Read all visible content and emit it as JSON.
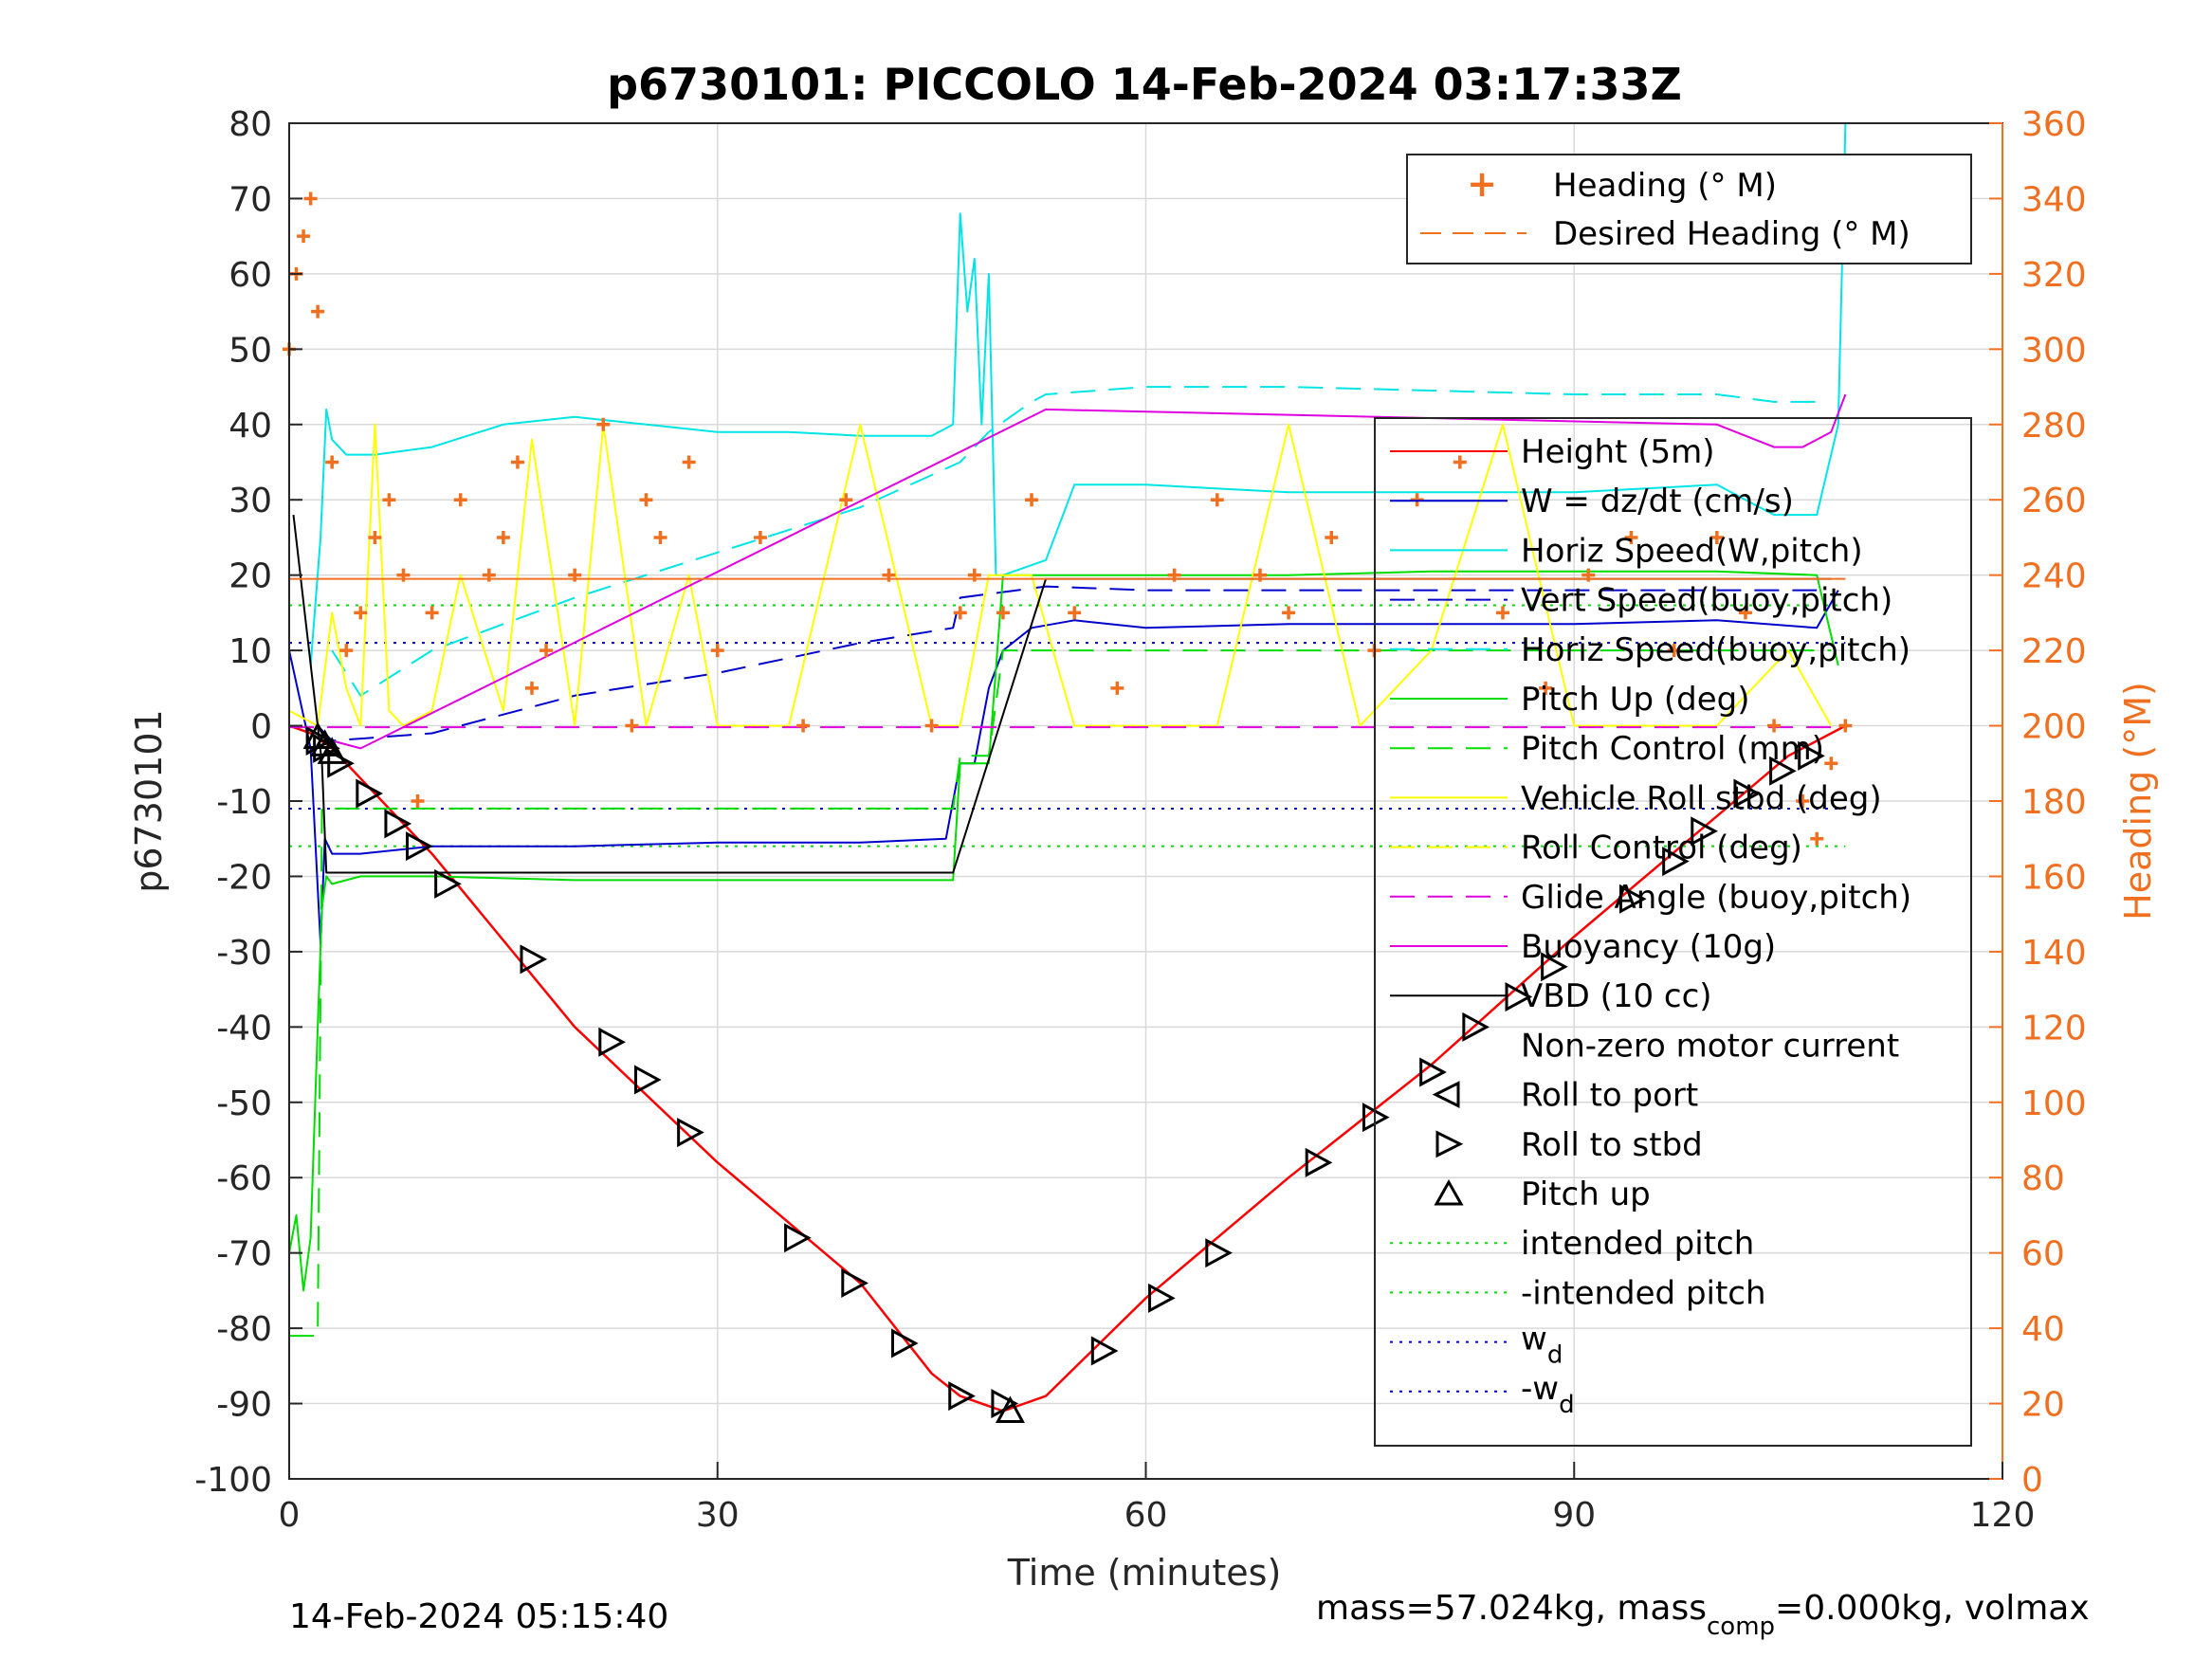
{
  "colors": {
    "height": "#ff0000",
    "w": "#0000cd",
    "horiz_speed_w": "#00e5e5",
    "vert_speed_buoy": "#0000cd",
    "horiz_speed_buoy": "#00e5e5",
    "pitch": "#00dd00",
    "roll": "#ffff00",
    "glide": "#e000e0",
    "buoyancy": "#e000e0",
    "vbd": "#000000",
    "heading": "#f07020",
    "grid": "#d9d9d9",
    "axis": "#262626",
    "right_axis": "#f07020"
  },
  "chart_data": {
    "type": "line",
    "title": "p6730101: PICCOLO 14-Feb-2024 03:17:33Z",
    "xlabel": "Time (minutes)",
    "ylabel": "p6730101",
    "ylabel_right": "Heading (°M)",
    "xlim": [
      0,
      120
    ],
    "ylim": [
      -100,
      80
    ],
    "ylim_right": [
      0,
      360
    ],
    "grid": true,
    "xticks": [
      "0",
      "30",
      "60",
      "90",
      "120"
    ],
    "yticks": [
      "80",
      "70",
      "60",
      "50",
      "40",
      "30",
      "20",
      "10",
      "0",
      "-10",
      "-20",
      "-30",
      "-40",
      "-50",
      "-60",
      "-70",
      "-80",
      "-90",
      "-100"
    ],
    "yticks_right": [
      "360",
      "340",
      "320",
      "300",
      "280",
      "260",
      "240",
      "220",
      "200",
      "180",
      "160",
      "140",
      "120",
      "100",
      "80",
      "60",
      "40",
      "20",
      "0"
    ],
    "legend_heading": [
      "Heading (° M)",
      "Desired Heading (° M)"
    ],
    "legend_main": [
      "Height (5m)",
      "W = dz/dt (cm/s)",
      "Horiz Speed(W,pitch)",
      "Vert Speed(buoy,pitch)",
      "Horiz Speed(buoy,pitch)",
      "Pitch Up (deg)",
      "Pitch Control (mm)",
      "Vehicle Roll stbd (deg)",
      "Roll Control (deg)",
      "Glide Angle (buoy,pitch)",
      "Buoyancy (10g)",
      "VBD (10 cc)",
      "Non-zero motor current",
      "Roll to port",
      "Roll to stbd",
      "Pitch up",
      "intended pitch",
      "-intended pitch"
    ],
    "legend_wd": [
      "w",
      "d",
      "-w",
      "d"
    ],
    "footer_left": "14-Feb-2024 05:15:40",
    "footer_right": [
      "mass=57.024kg, mass",
      "comp",
      "=0.000kg, volmax"
    ],
    "series": [
      {
        "key": "height",
        "x": [
          0,
          1.5,
          3,
          10,
          20,
          30,
          40,
          45,
          47,
          50,
          53,
          60,
          70,
          80,
          90,
          100,
          105,
          109
        ],
        "y": [
          0,
          -1,
          -3,
          -17,
          -40,
          -58,
          -74,
          -86,
          -89,
          -91,
          -89,
          -76,
          -60,
          -45,
          -28,
          -12,
          -4,
          0
        ]
      },
      {
        "key": "w",
        "x": [
          0,
          1.5,
          2.2,
          2.5,
          3,
          5,
          10,
          20,
          30,
          40,
          46,
          47,
          48,
          49,
          50,
          52,
          55,
          60,
          70,
          80,
          90,
          100,
          107,
          108.5
        ],
        "y": [
          10,
          -3,
          -29,
          -15,
          -17,
          -17,
          -16,
          -16,
          -15.5,
          -15.5,
          -15,
          -5,
          -5,
          5,
          10,
          13,
          14,
          13,
          13.5,
          13.5,
          13.5,
          14,
          13,
          18
        ]
      },
      {
        "key": "vert_speed_buoy",
        "x": [
          2,
          3,
          10,
          20,
          30,
          40,
          46.5,
          47,
          53,
          60,
          70,
          80,
          90,
          100,
          107
        ],
        "y": [
          0,
          -2,
          -1,
          4,
          7,
          11,
          13,
          17,
          18.5,
          18,
          18,
          18,
          18,
          18,
          18
        ]
      },
      {
        "key": "horiz_speed_w",
        "x": [
          1.5,
          2.2,
          2.6,
          3,
          4,
          6,
          10,
          15,
          20,
          25,
          30,
          35,
          40,
          45,
          46.5,
          47,
          47.5,
          48,
          48.5,
          49,
          49.5,
          50,
          53,
          55,
          60,
          70,
          80,
          90,
          100,
          104,
          107,
          108.5,
          109
        ],
        "y": [
          8,
          25,
          42,
          38,
          36,
          36,
          37,
          40,
          41,
          40,
          39,
          39,
          38.5,
          38.5,
          40,
          68,
          55,
          62,
          40,
          60,
          20,
          20,
          22,
          32,
          32,
          31,
          31,
          31,
          32,
          28,
          28,
          40,
          80
        ]
      },
      {
        "key": "horiz_speed_buoy",
        "x": [
          3,
          5,
          10,
          20,
          30,
          40,
          47,
          49,
          52,
          53,
          60,
          70,
          80,
          90,
          100,
          104,
          107
        ],
        "y": [
          10,
          4,
          10,
          17,
          23,
          29,
          35,
          39,
          43,
          44,
          45,
          45,
          44.5,
          44,
          44,
          43,
          43
        ]
      },
      {
        "key": "pitch",
        "x": [
          0,
          0.5,
          1,
          1.5,
          2,
          2.3,
          2.6,
          3,
          5,
          10,
          20,
          30,
          40,
          46.5,
          47,
          49,
          50,
          52,
          55,
          60,
          70,
          80,
          90,
          100,
          107,
          108.5
        ],
        "y": [
          -70,
          -65,
          -75,
          -68,
          -40,
          -24,
          -20,
          -21,
          -20,
          -20,
          -20.5,
          -20.5,
          -20.5,
          -20.5,
          -5,
          -5,
          20,
          20,
          20,
          20,
          20,
          20.5,
          20.5,
          20.5,
          20,
          8
        ]
      },
      {
        "key": "pitch_control",
        "x": [
          0,
          2,
          2.3,
          3,
          46.5,
          47,
          49,
          50,
          108
        ],
        "y": [
          -81,
          -81,
          -11,
          -11,
          -11,
          -4,
          -4,
          10,
          10
        ]
      },
      {
        "key": "roll",
        "x": [
          0,
          2,
          3,
          4,
          5,
          6,
          7,
          8,
          10,
          12,
          15,
          17,
          20,
          22,
          25,
          28,
          30,
          35,
          40,
          45,
          47,
          49,
          52,
          55,
          60,
          65,
          70,
          75,
          80,
          85,
          90,
          95,
          100,
          105,
          108
        ],
        "y": [
          2,
          0,
          15,
          5,
          0,
          40,
          2,
          0,
          2,
          20,
          2,
          38,
          0,
          40,
          0,
          20,
          0,
          0,
          40,
          0,
          0,
          20,
          20,
          0,
          0,
          0,
          40,
          0,
          10,
          40,
          0,
          0,
          0,
          10,
          0
        ]
      },
      {
        "key": "glide",
        "x": [
          0,
          109
        ],
        "y": [
          -0.2,
          -0.2
        ]
      },
      {
        "key": "buoyancy",
        "x": [
          3,
          5,
          53,
          100,
          104,
          106,
          108,
          109
        ],
        "y": [
          -2,
          -3,
          42,
          40,
          37,
          37,
          39,
          44
        ]
      },
      {
        "key": "vbd",
        "x": [
          0.3,
          2,
          2.3,
          2.6,
          46.5,
          53,
          108
        ],
        "y": [
          28,
          0,
          -5,
          -19.5,
          -19.5,
          19.5,
          19.5
        ]
      },
      {
        "key": "desired_heading",
        "x": [
          0,
          109
        ],
        "y": [
          239,
          239
        ]
      }
    ],
    "heading": {
      "x": [
        0,
        0.5,
        1,
        1.5,
        2,
        3,
        4,
        5,
        6,
        7,
        8,
        9,
        10,
        12,
        14,
        15,
        16,
        17,
        18,
        20,
        22,
        24,
        25,
        26,
        28,
        30,
        33,
        36,
        39,
        42,
        45,
        47,
        48,
        50,
        52,
        55,
        58,
        62,
        65,
        68,
        70,
        73,
        76,
        79,
        82,
        85,
        88,
        91,
        94,
        97,
        100,
        102,
        104,
        106,
        107,
        108,
        109
      ],
      "y": [
        300,
        320,
        330,
        340,
        310,
        270,
        220,
        230,
        250,
        260,
        240,
        180,
        230,
        260,
        240,
        250,
        270,
        210,
        220,
        240,
        280,
        200,
        260,
        250,
        270,
        220,
        250,
        200,
        260,
        240,
        200,
        230,
        240,
        230,
        260,
        230,
        210,
        240,
        260,
        240,
        230,
        250,
        220,
        260,
        270,
        230,
        210,
        240,
        250,
        220,
        250,
        230,
        200,
        180,
        170,
        190,
        200
      ]
    },
    "markers": {
      "roll_stbd": {
        "x": [
          2,
          2.5,
          3.5,
          5.5,
          7.5,
          9,
          11,
          17,
          22.5,
          25,
          28,
          35.5,
          39.5,
          43,
          47,
          50,
          57,
          61,
          65,
          72,
          76,
          80,
          83,
          86,
          88.5,
          94,
          97,
          99,
          102,
          104.5,
          106.5
        ],
        "y": [
          -2,
          -3,
          -5,
          -9,
          -13,
          -16,
          -21,
          -31,
          -42,
          -47,
          -54,
          -68,
          -74,
          -82,
          -89,
          -90,
          -83,
          -76,
          -70,
          -58,
          -52,
          -46,
          -40,
          -36,
          -32,
          -23,
          -18,
          -14,
          -9,
          -6,
          -4
        ]
      },
      "pitch_up": {
        "x": [
          2,
          2.5,
          3,
          50.5
        ],
        "y": [
          -1.5,
          -2.5,
          -3.5,
          -91
        ]
      }
    }
  }
}
